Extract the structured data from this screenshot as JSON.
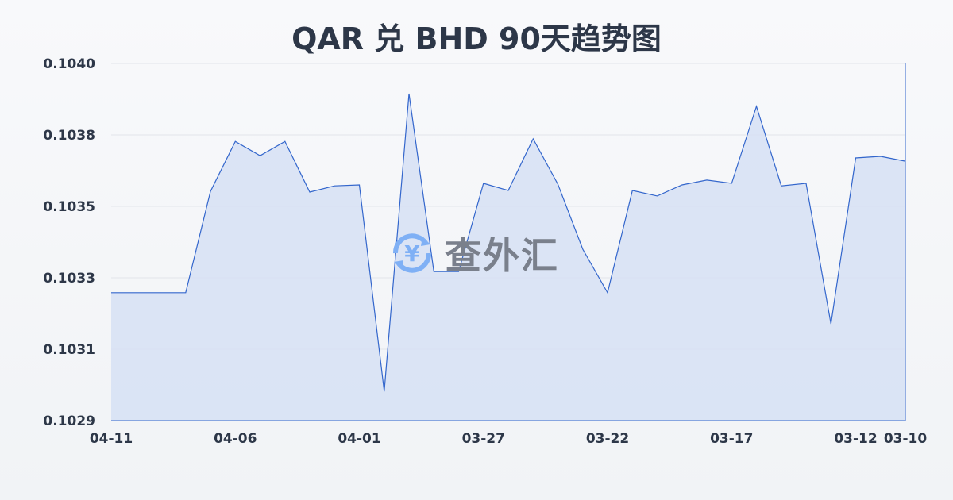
{
  "chart_data": {
    "type": "area",
    "title": "QAR 兑 BHD 90天趋势图",
    "xlabel": "",
    "ylabel": "",
    "ylim": [
      0.1029,
      0.104
    ],
    "y_tick_labels": [
      "0.1029",
      "0.1031",
      "0.1033",
      "0.1035",
      "0.1038",
      "0.1040"
    ],
    "x_tick_labels": [
      "04-11",
      "04-06",
      "04-01",
      "03-27",
      "03-22",
      "03-17",
      "03-12",
      "03-10"
    ],
    "grid": true,
    "x_direction": "descending dates",
    "x": [
      "04-11",
      "04-10",
      "04-09",
      "04-08",
      "04-07",
      "04-06",
      "04-05",
      "04-04",
      "04-03",
      "04-02",
      "04-01",
      "03-31",
      "03-30",
      "03-29",
      "03-28",
      "03-27",
      "03-26",
      "03-25",
      "03-24",
      "03-23",
      "03-22",
      "03-21",
      "03-20",
      "03-19",
      "03-18",
      "03-17",
      "03-16",
      "03-15",
      "03-14",
      "03-13",
      "03-12",
      "03-11",
      "03-10"
    ],
    "values": [
      0.103294,
      0.103294,
      0.103294,
      0.103294,
      0.103606,
      0.10376,
      0.103716,
      0.10376,
      0.103604,
      0.103623,
      0.103626,
      0.10299,
      0.103907,
      0.103359,
      0.103359,
      0.103631,
      0.103609,
      0.103768,
      0.103628,
      0.103428,
      0.103294,
      0.103609,
      0.103592,
      0.103626,
      0.103641,
      0.103631,
      0.103868,
      0.103623,
      0.103631,
      0.103198,
      0.103709,
      0.103714,
      0.103699
    ],
    "line_color": "#3366cc",
    "fill_color": "#d6e0f5"
  },
  "watermark": {
    "text": "查外汇",
    "icon": "yen-exchange-icon",
    "icon_color": "#7fb0f5"
  }
}
